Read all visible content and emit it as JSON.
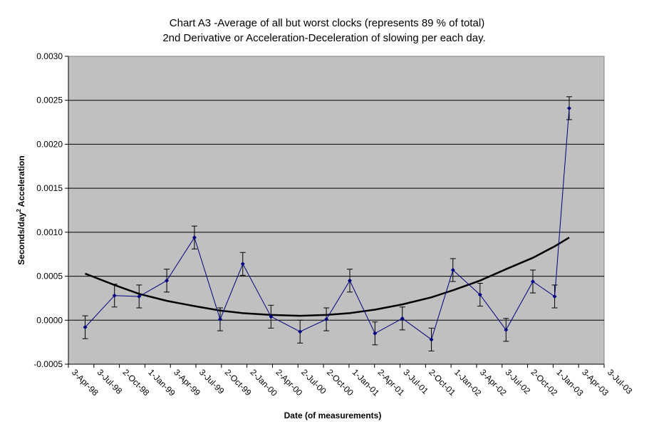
{
  "chart_data": {
    "type": "line",
    "title_line1": "Chart A3 -Average of all but worst clocks (represents 89 % of total)",
    "title_line2": "2nd Derivative or Acceleration-Deceleration of slowing per each day.",
    "xlabel": "Date (of measurements)",
    "ylabel_prefix": "Seconds/day",
    "ylabel_sup": "2",
    "ylabel_suffix": " Acceleration",
    "ylim": [
      -0.0005,
      0.003
    ],
    "yticks": [
      "-0.0005",
      "0.0000",
      "0.0005",
      "0.0010",
      "0.0015",
      "0.0020",
      "0.0025",
      "0.0030"
    ],
    "xlim": [
      "1998-04-03",
      "2003-07-03"
    ],
    "xticks": [
      "3-Apr-98",
      "3-Jul-98",
      "2-Oct-98",
      "1-Jan-99",
      "3-Apr-99",
      "3-Jul-99",
      "2-Oct-99",
      "2-Jan-00",
      "2-Apr-00",
      "2-Jul-00",
      "2-Oct-00",
      "1-Jan-01",
      "2-Apr-01",
      "3-Jul-01",
      "2-Oct-01",
      "1-Jan-02",
      "3-Apr-02",
      "3-Jul-02",
      "2-Oct-02",
      "1-Jan-03",
      "3-Apr-03",
      "3-Jul-03"
    ],
    "grid": true,
    "colors": {
      "plot_bg": "#c0c0c0",
      "series": "#000080",
      "trend": "#000000"
    },
    "series": [
      {
        "x": [
          "1998-06-02",
          "1998-09-15",
          "1998-12-12",
          "1999-03-21",
          "1999-06-28",
          "1999-09-28",
          "1999-12-18",
          "2000-03-28",
          "2000-07-10",
          "2000-10-12",
          "2001-01-04",
          "2001-04-04",
          "2001-07-11",
          "2001-10-23",
          "2002-01-08",
          "2002-04-15",
          "2002-07-17",
          "2002-10-21",
          "2003-01-07",
          "2003-02-28"
        ],
        "y": [
          -8e-05,
          0.00028,
          0.00027,
          0.00045,
          0.00094,
          1e-05,
          0.00064,
          4e-05,
          -0.00013,
          1e-05,
          0.00045,
          -0.00015,
          2e-05,
          -0.00022,
          0.00057,
          0.00029,
          -0.00011,
          0.00044,
          0.00027,
          0.00241
        ],
        "error": 0.00013
      }
    ],
    "trendline": {
      "x": [
        "1998-06-02",
        "1998-09-15",
        "1998-12-12",
        "1999-03-21",
        "1999-06-28",
        "1999-09-28",
        "1999-12-18",
        "2000-03-28",
        "2000-07-10",
        "2000-10-12",
        "2001-01-04",
        "2001-04-04",
        "2001-07-11",
        "2001-10-23",
        "2002-01-08",
        "2002-04-15",
        "2002-07-17",
        "2002-10-21",
        "2003-01-07",
        "2003-02-28"
      ],
      "y": [
        0.00053,
        0.0004,
        0.0003,
        0.00022,
        0.00016,
        0.00011,
        8e-05,
        6e-05,
        5e-05,
        6e-05,
        8e-05,
        0.00012,
        0.00018,
        0.00026,
        0.00034,
        0.00045,
        0.00058,
        0.00071,
        0.00084,
        0.00094
      ]
    }
  }
}
